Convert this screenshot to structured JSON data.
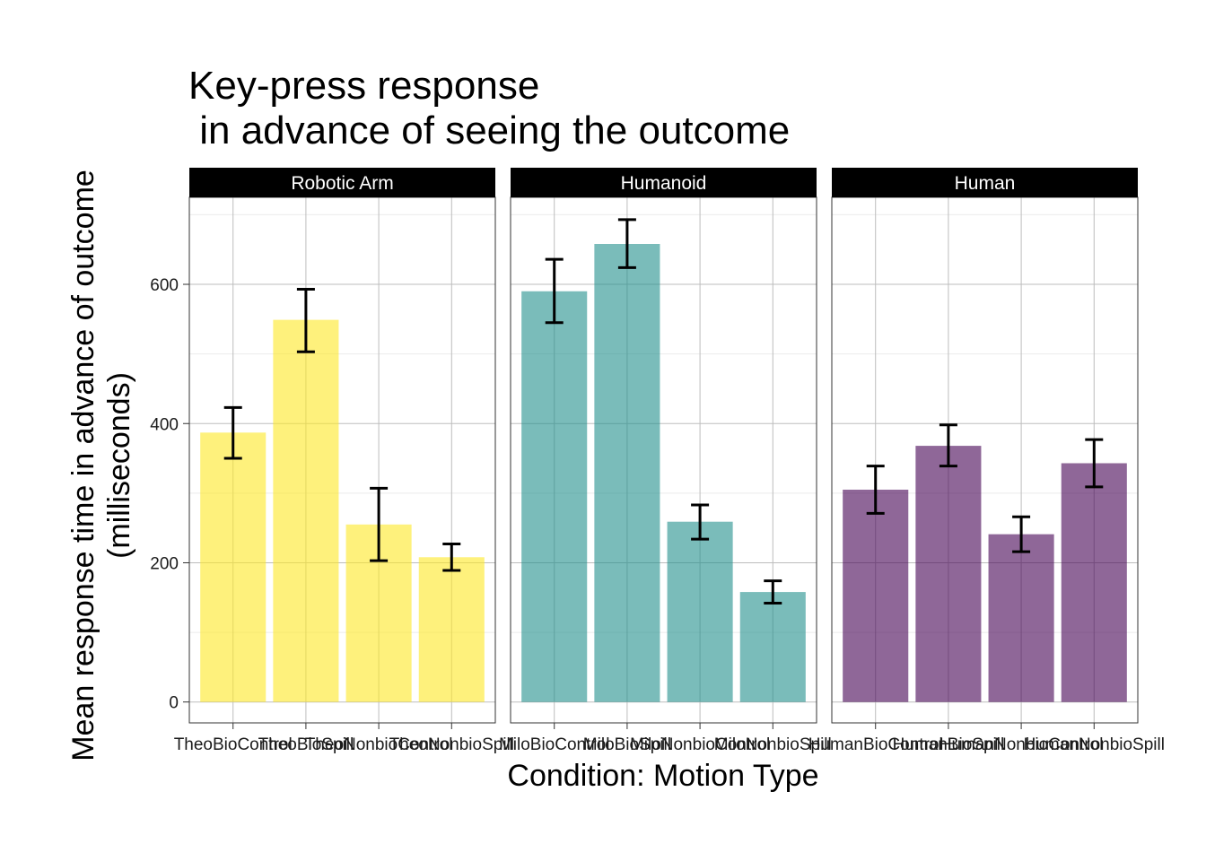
{
  "chart_data": {
    "type": "bar",
    "title_lines": [
      "Key-press response",
      " in advance of seeing the outcome"
    ],
    "xlabel": "Condition: Motion Type",
    "ylabel_lines": [
      "Mean response time in advance of outcome",
      "(milliseconds)"
    ],
    "ylim": [
      -30,
      725
    ],
    "yticks": [
      0,
      200,
      400,
      600
    ],
    "grid": true,
    "error_bars": true,
    "panels": [
      {
        "name": "Robotic Arm",
        "color": "#FDE725",
        "categories": [
          "TheoBioControl",
          "TheoBioSpill",
          "TheoNonbioControl",
          "TheoNonbioSpill"
        ],
        "values": [
          387,
          549,
          255,
          208
        ],
        "err_low": [
          350,
          503,
          203,
          189
        ],
        "err_high": [
          423,
          593,
          307,
          227
        ]
      },
      {
        "name": "Humanoid",
        "color": "#21908C",
        "categories": [
          "MiloBioControl",
          "MiloBioSpill",
          "MiloNonbioControl",
          "MiloNonbioSpill"
        ],
        "values": [
          590,
          658,
          259,
          158
        ],
        "err_low": [
          545,
          624,
          234,
          142
        ],
        "err_high": [
          636,
          693,
          283,
          174
        ]
      },
      {
        "name": "Human",
        "color": "#440154",
        "categories": [
          "HumanBioControl",
          "HumanBioSpill",
          "HumanNonbioControl",
          "HumanNonbioSpill"
        ],
        "values": [
          305,
          368,
          241,
          343
        ],
        "err_low": [
          271,
          339,
          216,
          309
        ],
        "err_high": [
          339,
          398,
          266,
          377
        ]
      }
    ]
  }
}
